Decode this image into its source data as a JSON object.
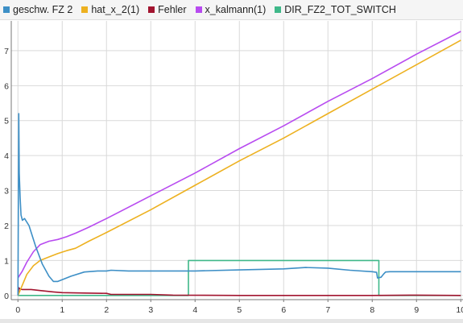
{
  "colors": {
    "background": "#ffffff",
    "grid": "#d9d9d9",
    "axis": "#777777",
    "tick_text": "#333333"
  },
  "chart_data": {
    "type": "line",
    "title": "",
    "xlabel": "",
    "ylabel": "",
    "xlim": [
      -0.15,
      10.05
    ],
    "ylim": [
      -0.12,
      7.85
    ],
    "x_ticks": [
      0,
      1,
      2,
      3,
      4,
      5,
      6,
      7,
      8,
      9,
      10
    ],
    "y_ticks": [
      0,
      1,
      2,
      3,
      4,
      5,
      6,
      7
    ],
    "x_tick_labels": [
      "0",
      "1",
      "2",
      "3",
      "4",
      "5",
      "6",
      "7",
      "8",
      "9",
      "10"
    ],
    "y_tick_labels": [
      "0",
      "1",
      "2",
      "3",
      "4",
      "5",
      "6",
      "7"
    ],
    "y_tick_labels_visible": [
      "0",
      "1",
      "2",
      "3",
      "4",
      "5",
      "6",
      "7"
    ],
    "grid": true,
    "legend_position": "top",
    "series": [
      {
        "name": "geschw. FZ 2",
        "color": "#3d8fc6",
        "x": [
          0,
          0.02,
          0.03,
          0.05,
          0.07,
          0.1,
          0.15,
          0.25,
          0.4,
          0.55,
          0.7,
          0.8,
          0.9,
          1.0,
          1.2,
          1.5,
          1.8,
          2.0,
          2.1,
          2.5,
          3,
          4,
          5,
          6,
          6.5,
          7,
          7.5,
          8,
          8.1,
          8.12,
          8.2,
          8.25,
          8.3,
          8.4,
          9,
          10
        ],
        "y": [
          0,
          5.2,
          3.5,
          2.8,
          2.3,
          2.15,
          2.2,
          2.0,
          1.4,
          0.9,
          0.55,
          0.4,
          0.4,
          0.45,
          0.55,
          0.67,
          0.7,
          0.7,
          0.72,
          0.7,
          0.7,
          0.7,
          0.73,
          0.76,
          0.8,
          0.78,
          0.72,
          0.68,
          0.66,
          0.5,
          0.52,
          0.6,
          0.67,
          0.68,
          0.68,
          0.68
        ]
      },
      {
        "name": "hat_x_2(1)",
        "color": "#edb120",
        "x": [
          0,
          0.1,
          0.2,
          0.35,
          0.5,
          0.7,
          0.9,
          1.1,
          1.3,
          1.6,
          2,
          3,
          4,
          5,
          6,
          7,
          8,
          9,
          10
        ],
        "y": [
          0,
          0.3,
          0.6,
          0.85,
          1.0,
          1.1,
          1.2,
          1.28,
          1.35,
          1.55,
          1.8,
          2.45,
          3.15,
          3.85,
          4.5,
          5.2,
          5.9,
          6.6,
          7.3
        ]
      },
      {
        "name": "Fehler",
        "color": "#a2142f",
        "x": [
          0,
          0.02,
          0.05,
          0.1,
          0.3,
          0.5,
          0.8,
          1.0,
          1.5,
          2.0,
          2.1,
          3,
          3.5,
          5,
          7,
          8,
          9,
          10
        ],
        "y": [
          0,
          0.22,
          0.18,
          0.17,
          0.17,
          0.14,
          0.1,
          0.08,
          0.07,
          0.06,
          0.03,
          0.03,
          0.01,
          0.0,
          0.0,
          0.0,
          0.01,
          0.0
        ]
      },
      {
        "name": "x_kalmann(1)",
        "color": "#b84bf0",
        "x": [
          0,
          0.1,
          0.2,
          0.35,
          0.5,
          0.7,
          0.9,
          1.1,
          1.3,
          1.6,
          2,
          3,
          4,
          5,
          6,
          7,
          8,
          9,
          10
        ],
        "y": [
          0.5,
          0.7,
          0.95,
          1.25,
          1.45,
          1.55,
          1.6,
          1.68,
          1.78,
          1.95,
          2.2,
          2.85,
          3.5,
          4.2,
          4.85,
          5.55,
          6.2,
          6.9,
          7.55
        ]
      },
      {
        "name": "DIR_FZ2_TOT_SWITCH",
        "color": "#3fb889",
        "x": [
          0,
          3.85,
          3.85,
          8.15,
          8.15,
          10
        ],
        "y": [
          0,
          0,
          1,
          1,
          0,
          0
        ]
      }
    ]
  }
}
